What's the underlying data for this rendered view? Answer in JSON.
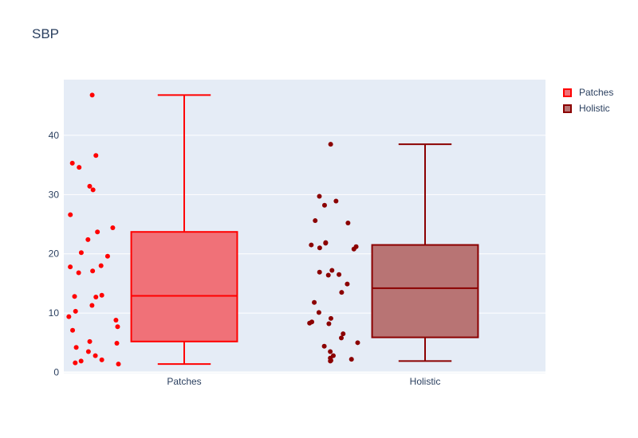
{
  "chart_data": {
    "type": "box",
    "title": "SBP",
    "xlabel": "",
    "ylabel": "",
    "categories": [
      "Patches",
      "Holistic"
    ],
    "ylim": [
      -0.2,
      49.4
    ],
    "yticks": [
      0,
      10,
      20,
      30,
      40
    ],
    "grid": true,
    "legend_position": "top-right",
    "series": [
      {
        "name": "Patches",
        "color": "#ff0000",
        "fill": "#f07178",
        "min": 1.4,
        "q1": 5.2,
        "median": 12.9,
        "q3": 23.7,
        "max": 46.8,
        "points": [
          46.8,
          36.6,
          35.3,
          34.6,
          31.4,
          30.8,
          26.6,
          24.4,
          23.7,
          22.4,
          20.2,
          19.6,
          18.0,
          17.8,
          17.1,
          16.8,
          13.0,
          12.8,
          12.7,
          11.3,
          10.3,
          9.4,
          8.8,
          7.7,
          7.1,
          5.2,
          4.9,
          4.2,
          3.5,
          2.8,
          2.1,
          1.9,
          1.6,
          1.4
        ]
      },
      {
        "name": "Holistic",
        "color": "#8b0000",
        "fill": "#b87474",
        "min": 1.9,
        "q1": 5.9,
        "median": 14.2,
        "q3": 21.5,
        "max": 38.5,
        "points": [
          38.5,
          29.7,
          28.9,
          28.2,
          25.6,
          25.2,
          21.9,
          21.8,
          21.5,
          21.2,
          21.0,
          20.8,
          17.2,
          16.9,
          16.5,
          16.4,
          14.9,
          13.5,
          11.8,
          10.1,
          9.1,
          8.5,
          8.3,
          8.2,
          6.5,
          5.8,
          5.0,
          4.4,
          3.5,
          2.8,
          2.4,
          2.2,
          2.0,
          1.9
        ]
      }
    ]
  }
}
